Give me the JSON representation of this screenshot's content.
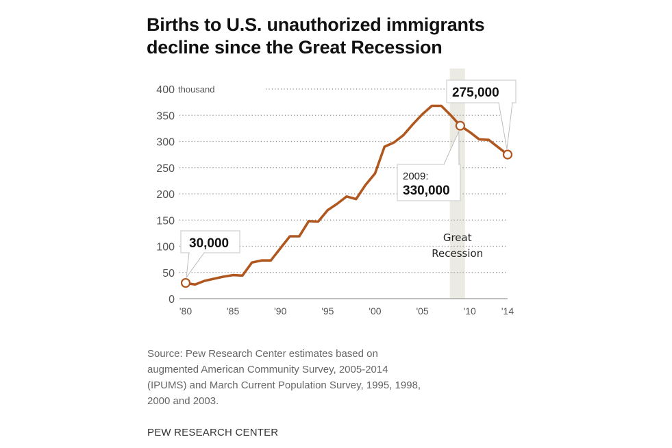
{
  "chart_data": {
    "type": "line",
    "title": "Births to U.S. unauthorized immigrants decline since the Great Recession",
    "title_lines": [
      "Births to U.S. unauthorized immigrants",
      "decline since the Great Recession"
    ],
    "xlabel": "",
    "ylabel": "",
    "y_unit_label": "thousand",
    "ylim": [
      0,
      400
    ],
    "xlim": [
      1980,
      2014
    ],
    "grid": true,
    "y_ticks": [
      0,
      50,
      100,
      150,
      200,
      250,
      300,
      350,
      400
    ],
    "y_tick_labels": [
      "0",
      "50",
      "100",
      "150",
      "200",
      "250",
      "300",
      "350",
      "400"
    ],
    "x_ticks": [
      1980,
      1985,
      1990,
      1995,
      2000,
      2005,
      2010,
      2014
    ],
    "x_tick_labels": [
      "'80",
      "'85",
      "'90",
      "'95",
      "'00",
      "'05",
      "'10",
      "'14"
    ],
    "series": [
      {
        "name": "Births to unauthorized immigrants (thousands)",
        "color": "#b0571f",
        "x": [
          1980,
          1981,
          1982,
          1983,
          1984,
          1985,
          1986,
          1987,
          1988,
          1989,
          1990,
          1991,
          1992,
          1993,
          1994,
          1995,
          1996,
          1997,
          1998,
          1999,
          2000,
          2001,
          2002,
          2003,
          2004,
          2005,
          2006,
          2007,
          2008,
          2009,
          2010,
          2011,
          2012,
          2013,
          2014
        ],
        "values": [
          30,
          27,
          34,
          38,
          42,
          45,
          44,
          69,
          73,
          73,
          96,
          119,
          119,
          148,
          147,
          169,
          181,
          195,
          190,
          217,
          239,
          290,
          298,
          312,
          333,
          352,
          368,
          368,
          350,
          330,
          318,
          304,
          303,
          289,
          275
        ]
      }
    ],
    "shaded_region": {
      "label": "Great Recession",
      "label_lines": [
        "Great",
        "Recession"
      ],
      "x_start": 2007.9,
      "x_end": 2009.5,
      "color": "#ecebe3"
    },
    "annotations": [
      {
        "x": 1980,
        "y": 30,
        "text": "30,000"
      },
      {
        "x": 2009,
        "y": 330,
        "prefix": "2009:",
        "text": "330,000"
      },
      {
        "x": 2014,
        "y": 275,
        "text": "275,000"
      }
    ]
  },
  "footer": {
    "source_lines": [
      "Source: Pew Research Center estimates based on",
      "augmented American Community Survey, 2005-2014",
      "(IPUMS) and March Current Population Survey, 1995, 1998,",
      "2000 and 2003."
    ],
    "brand": "PEW RESEARCH CENTER"
  }
}
